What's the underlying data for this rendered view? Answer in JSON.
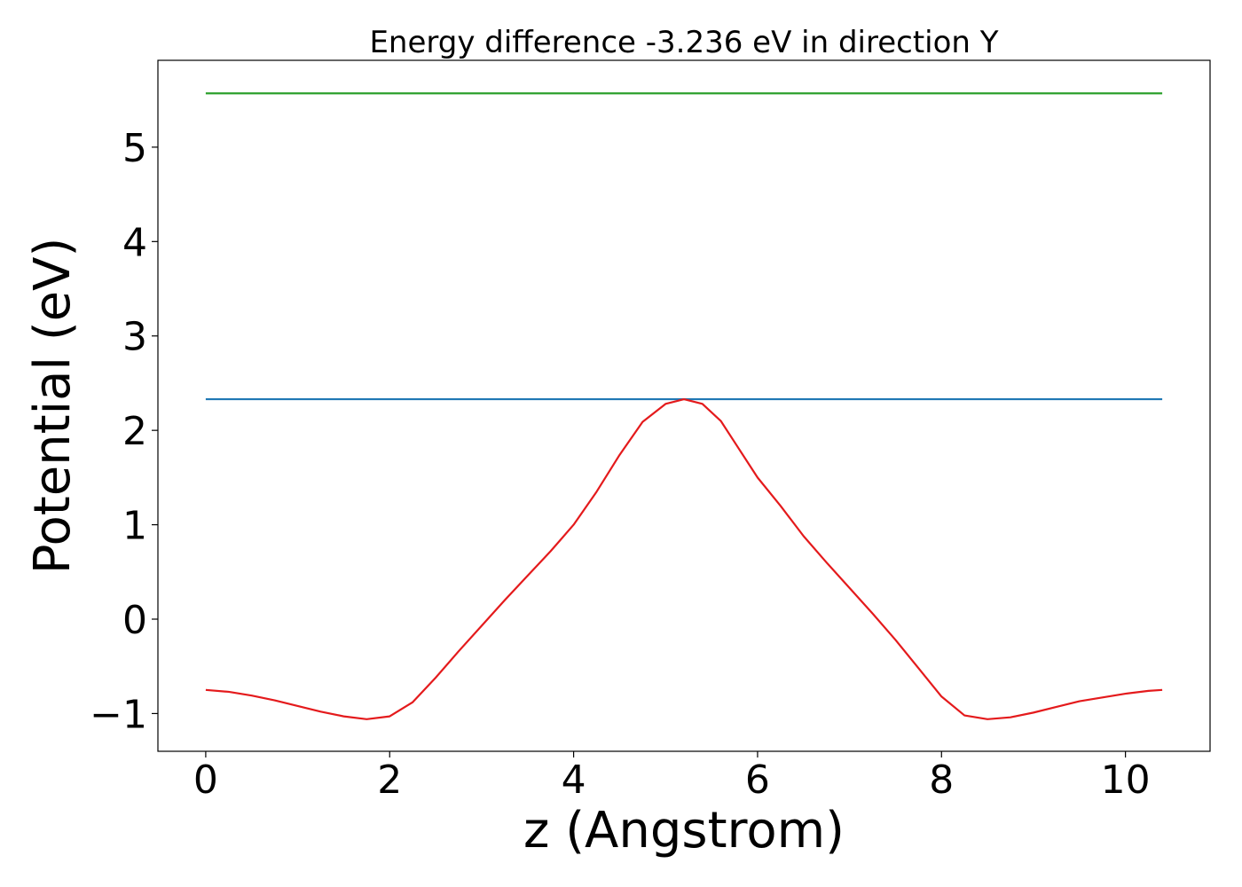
{
  "chart_data": {
    "type": "line",
    "title": "Energy difference -3.236 eV in direction Y",
    "xlabel": "z (Angstrom)",
    "ylabel": "Potential (eV)",
    "xlim": [
      -0.52,
      10.92
    ],
    "ylim": [
      -1.4,
      5.92
    ],
    "xticks": [
      0,
      2,
      4,
      6,
      8,
      10
    ],
    "xtick_labels": [
      "0",
      "2",
      "4",
      "6",
      "8",
      "10"
    ],
    "yticks": [
      -1,
      0,
      1,
      2,
      3,
      4,
      5
    ],
    "ytick_labels": [
      "−1",
      "0",
      "1",
      "2",
      "3",
      "4",
      "5"
    ],
    "grid": false,
    "series": [
      {
        "color": "#1f77b4",
        "x": [
          0,
          10.4
        ],
        "y": [
          2.33,
          2.33
        ]
      },
      {
        "color": "#2ca02c",
        "x": [
          0,
          10.4
        ],
        "y": [
          5.57,
          5.57
        ]
      },
      {
        "color": "#e41a1c",
        "x": [
          0,
          0.25,
          0.5,
          0.75,
          1.0,
          1.25,
          1.5,
          1.75,
          2.0,
          2.25,
          2.5,
          2.75,
          3.0,
          3.25,
          3.5,
          3.75,
          4.0,
          4.25,
          4.5,
          4.75,
          5.0,
          5.2,
          5.4,
          5.6,
          5.8,
          6.0,
          6.25,
          6.5,
          6.75,
          7.0,
          7.25,
          7.5,
          7.75,
          8.0,
          8.25,
          8.5,
          8.75,
          9.0,
          9.25,
          9.5,
          9.75,
          10.0,
          10.25,
          10.4
        ],
        "y": [
          -0.75,
          -0.77,
          -0.81,
          -0.86,
          -0.92,
          -0.98,
          -1.03,
          -1.06,
          -1.03,
          -0.88,
          -0.62,
          -0.34,
          -0.07,
          0.2,
          0.46,
          0.72,
          1.0,
          1.35,
          1.74,
          2.09,
          2.28,
          2.33,
          2.28,
          2.1,
          1.8,
          1.5,
          1.2,
          0.88,
          0.6,
          0.33,
          0.06,
          -0.22,
          -0.52,
          -0.82,
          -1.02,
          -1.06,
          -1.04,
          -0.99,
          -0.93,
          -0.87,
          -0.83,
          -0.79,
          -0.76,
          -0.75
        ]
      }
    ]
  }
}
